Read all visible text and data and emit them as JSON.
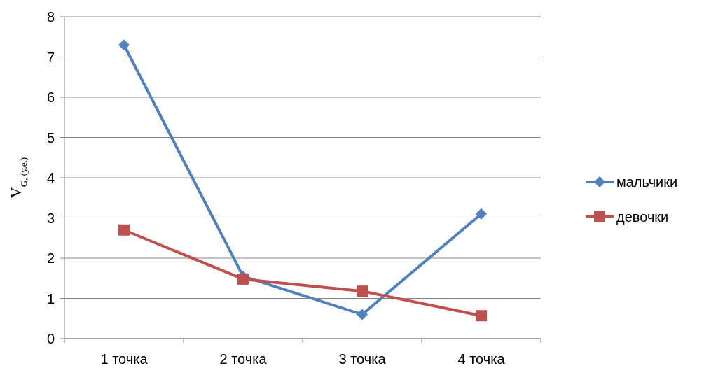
{
  "chart_data": {
    "type": "line",
    "ylabel": "V$_{G, (у.е.)}$",
    "categories": [
      "1 точка",
      "2 точка",
      "3 точка",
      "4 точка"
    ],
    "series": [
      {
        "name": "мальчики",
        "color": "#4f81bd",
        "marker": "diamond",
        "values": [
          7.3,
          1.55,
          0.6,
          3.1
        ]
      },
      {
        "name": "девочки",
        "color": "#c0504d",
        "marker": "square",
        "values": [
          2.7,
          1.48,
          1.18,
          0.57
        ]
      }
    ],
    "ylim": [
      0,
      8
    ],
    "yticks": [
      0,
      1,
      2,
      3,
      4,
      5,
      6,
      7,
      8
    ],
    "grid": "y",
    "legend": "right",
    "line_style": "solid"
  }
}
